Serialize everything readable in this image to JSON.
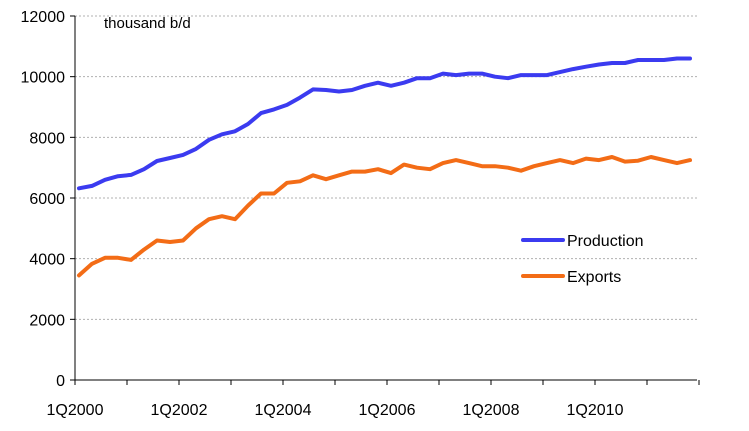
{
  "chart_data": {
    "type": "line",
    "title": "",
    "unit_label": "thousand b/d",
    "xlabel": "",
    "ylabel": "",
    "ylim": [
      0,
      12000
    ],
    "yticks": [
      "0",
      "2000",
      "4000",
      "6000",
      "8000",
      "10000",
      "12000"
    ],
    "xticks": [
      {
        "label": "1Q2000",
        "index": 0
      },
      {
        "label": "1Q2002",
        "index": 8
      },
      {
        "label": "1Q2004",
        "index": 16
      },
      {
        "label": "1Q2006",
        "index": 24
      },
      {
        "label": "1Q2008",
        "index": 32
      },
      {
        "label": "1Q2010",
        "index": 40
      }
    ],
    "grid": true,
    "legend_position": "lower-right",
    "x": [
      "1Q2000",
      "2Q2000",
      "3Q2000",
      "4Q2000",
      "1Q2001",
      "2Q2001",
      "3Q2001",
      "4Q2001",
      "1Q2002",
      "2Q2002",
      "3Q2002",
      "4Q2002",
      "1Q2003",
      "2Q2003",
      "3Q2003",
      "4Q2003",
      "1Q2004",
      "2Q2004",
      "3Q2004",
      "4Q2004",
      "1Q2005",
      "2Q2005",
      "3Q2005",
      "4Q2005",
      "1Q2006",
      "2Q2006",
      "3Q2006",
      "4Q2006",
      "1Q2007",
      "2Q2007",
      "3Q2007",
      "4Q2007",
      "1Q2008",
      "2Q2008",
      "3Q2008",
      "4Q2008",
      "1Q2009",
      "2Q2009",
      "3Q2009",
      "4Q2009",
      "1Q2010",
      "2Q2010",
      "3Q2010",
      "4Q2010",
      "1Q2011",
      "2Q2011",
      "3Q2011",
      "4Q2011"
    ],
    "series": [
      {
        "name": "Production",
        "color": "#3b3bf0",
        "values": [
          6320,
          6400,
          6600,
          6720,
          6760,
          6950,
          7220,
          7320,
          7420,
          7620,
          7920,
          8100,
          8200,
          8440,
          8800,
          8920,
          9070,
          9310,
          9580,
          9560,
          9510,
          9560,
          9700,
          9800,
          9700,
          9800,
          9950,
          9950,
          10100,
          10050,
          10100,
          10100,
          10000,
          9950,
          10050,
          10050,
          10050,
          10150,
          10250,
          10330,
          10400,
          10450,
          10450,
          10550,
          10550,
          10550,
          10600,
          10600
        ]
      },
      {
        "name": "Exports",
        "color": "#f36c16",
        "values": [
          3450,
          3830,
          4030,
          4030,
          3960,
          4300,
          4600,
          4550,
          4600,
          5000,
          5300,
          5400,
          5300,
          5750,
          6150,
          6150,
          6500,
          6550,
          6750,
          6620,
          6750,
          6870,
          6870,
          6950,
          6820,
          7100,
          7000,
          6950,
          7150,
          7250,
          7150,
          7050,
          7050,
          7000,
          6900,
          7050,
          7150,
          7250,
          7150,
          7300,
          7250,
          7350,
          7200,
          7230,
          7350,
          7250,
          7150,
          7250
        ]
      }
    ]
  }
}
